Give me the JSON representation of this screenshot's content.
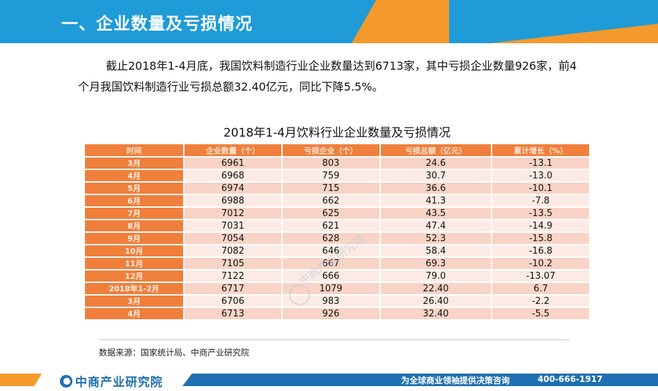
{
  "header": {
    "title": "一、企业数量及亏损情况"
  },
  "intro": "截止2018年1-4月底，我国饮料制造行业企业数量达到6713家，其中亏损企业数量926家，前4个月我国饮料制造行业亏损总额32.40亿元，同比下降5.5%。",
  "table": {
    "title": "2018年1-4月饮料行业企业数量及亏损情况",
    "headers": [
      "时间",
      "企业数量（个）",
      "亏损企业（个）",
      "亏损总额（亿元）",
      "累计增长（%）"
    ],
    "rows": [
      [
        "3月",
        "6961",
        "803",
        "24.6",
        "-13.1"
      ],
      [
        "4月",
        "6968",
        "759",
        "30.7",
        "-13.0"
      ],
      [
        "5月",
        "6974",
        "715",
        "36.6",
        "-10.1"
      ],
      [
        "6月",
        "6988",
        "662",
        "41.3",
        "-7.8"
      ],
      [
        "7月",
        "7012",
        "625",
        "43.5",
        "-13.5"
      ],
      [
        "8月",
        "7031",
        "621",
        "47.4",
        "-14.9"
      ],
      [
        "9月",
        "7054",
        "628",
        "52.3",
        "-15.8"
      ],
      [
        "10月",
        "7082",
        "646",
        "58.4",
        "-16.8"
      ],
      [
        "11月",
        "7105",
        "667",
        "69.3",
        "-10.2"
      ],
      [
        "12月",
        "7122",
        "666",
        "79.0",
        "-13.07"
      ],
      [
        "2018年1-2月",
        "6717",
        "1079",
        "22.40",
        "6.7"
      ],
      [
        "3月",
        "6706",
        "983",
        "26.40",
        "-2.2"
      ],
      [
        "4月",
        "6713",
        "926",
        "32.40",
        "-5.5"
      ]
    ]
  },
  "source": "数据来源：国家统计局、中商产业研究院",
  "watermark": "中商产业研究院",
  "footer": {
    "logo": "中商产业研究院",
    "slogan": "为全球商业领袖提供决策咨询",
    "phone": "400-666-1917"
  },
  "colors": {
    "header_blue": "#1f9bd7",
    "accent_orange": "#f49a2c",
    "table_header": "#f07f3c",
    "row_odd": "#f8d3c6",
    "row_even": "#fcebe4",
    "footer_blue": "#1f6fb2"
  }
}
